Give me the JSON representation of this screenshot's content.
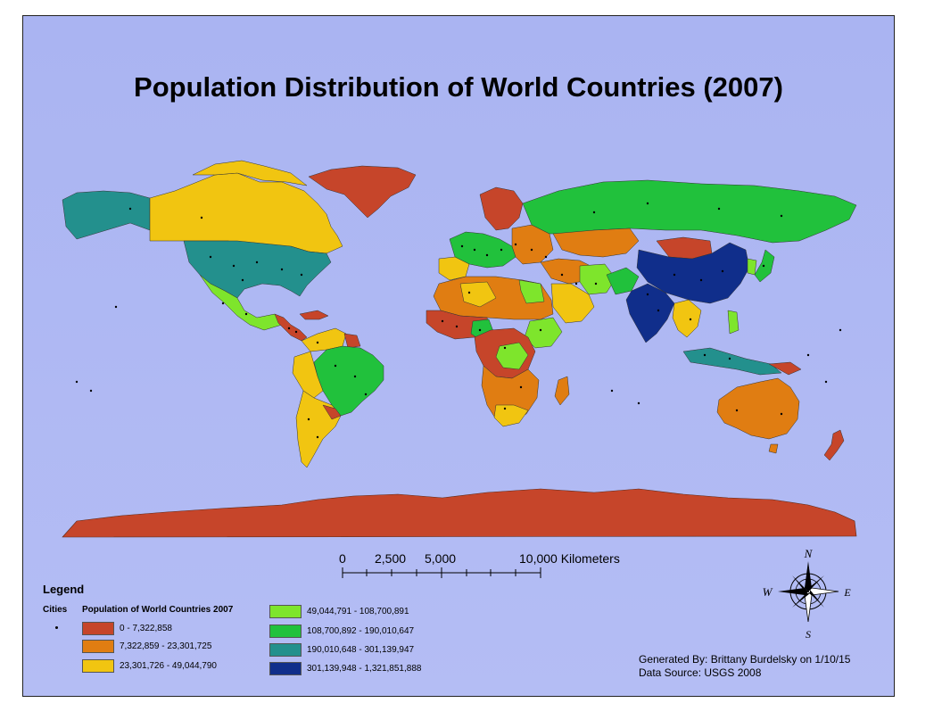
{
  "map": {
    "title": "Population Distribution of World Countries (2007)",
    "colors": {
      "ocean": "#b3bcf4",
      "class1": "#c6452a",
      "class2": "#e07d12",
      "class3": "#f1c511",
      "class4": "#7ee52c",
      "class5": "#21c13c",
      "class6": "#23908d",
      "class7": "#102e8b"
    }
  },
  "scale_bar": {
    "label_0": "0",
    "label_2500": "2,500",
    "label_5000": "5,000",
    "label_10000": "10,000 Kilometers"
  },
  "legend": {
    "title": "Legend",
    "cities_label": "Cities",
    "population_label": "Population of World Countries 2007",
    "classes": [
      {
        "label": "0 - 7,322,858",
        "color": "#c6452a"
      },
      {
        "label": "7,322,859 - 23,301,725",
        "color": "#e07d12"
      },
      {
        "label": "23,301,726 - 49,044,790",
        "color": "#f1c511"
      },
      {
        "label": "49,044,791 - 108,700,891",
        "color": "#7ee52c"
      },
      {
        "label": "108,700,892 - 190,010,647",
        "color": "#21c13c"
      },
      {
        "label": "190,010,648 - 301,139,947",
        "color": "#23908d"
      },
      {
        "label": "301,139,948 - 1,321,851,888",
        "color": "#102e8b"
      }
    ]
  },
  "north_arrow": {
    "n": "N",
    "e": "E",
    "s": "S",
    "w": "W"
  },
  "credits": {
    "generated_by": "Generated By: Brittany Burdelsky on 1/10/15",
    "data_source": "Data Source: USGS 2008"
  }
}
